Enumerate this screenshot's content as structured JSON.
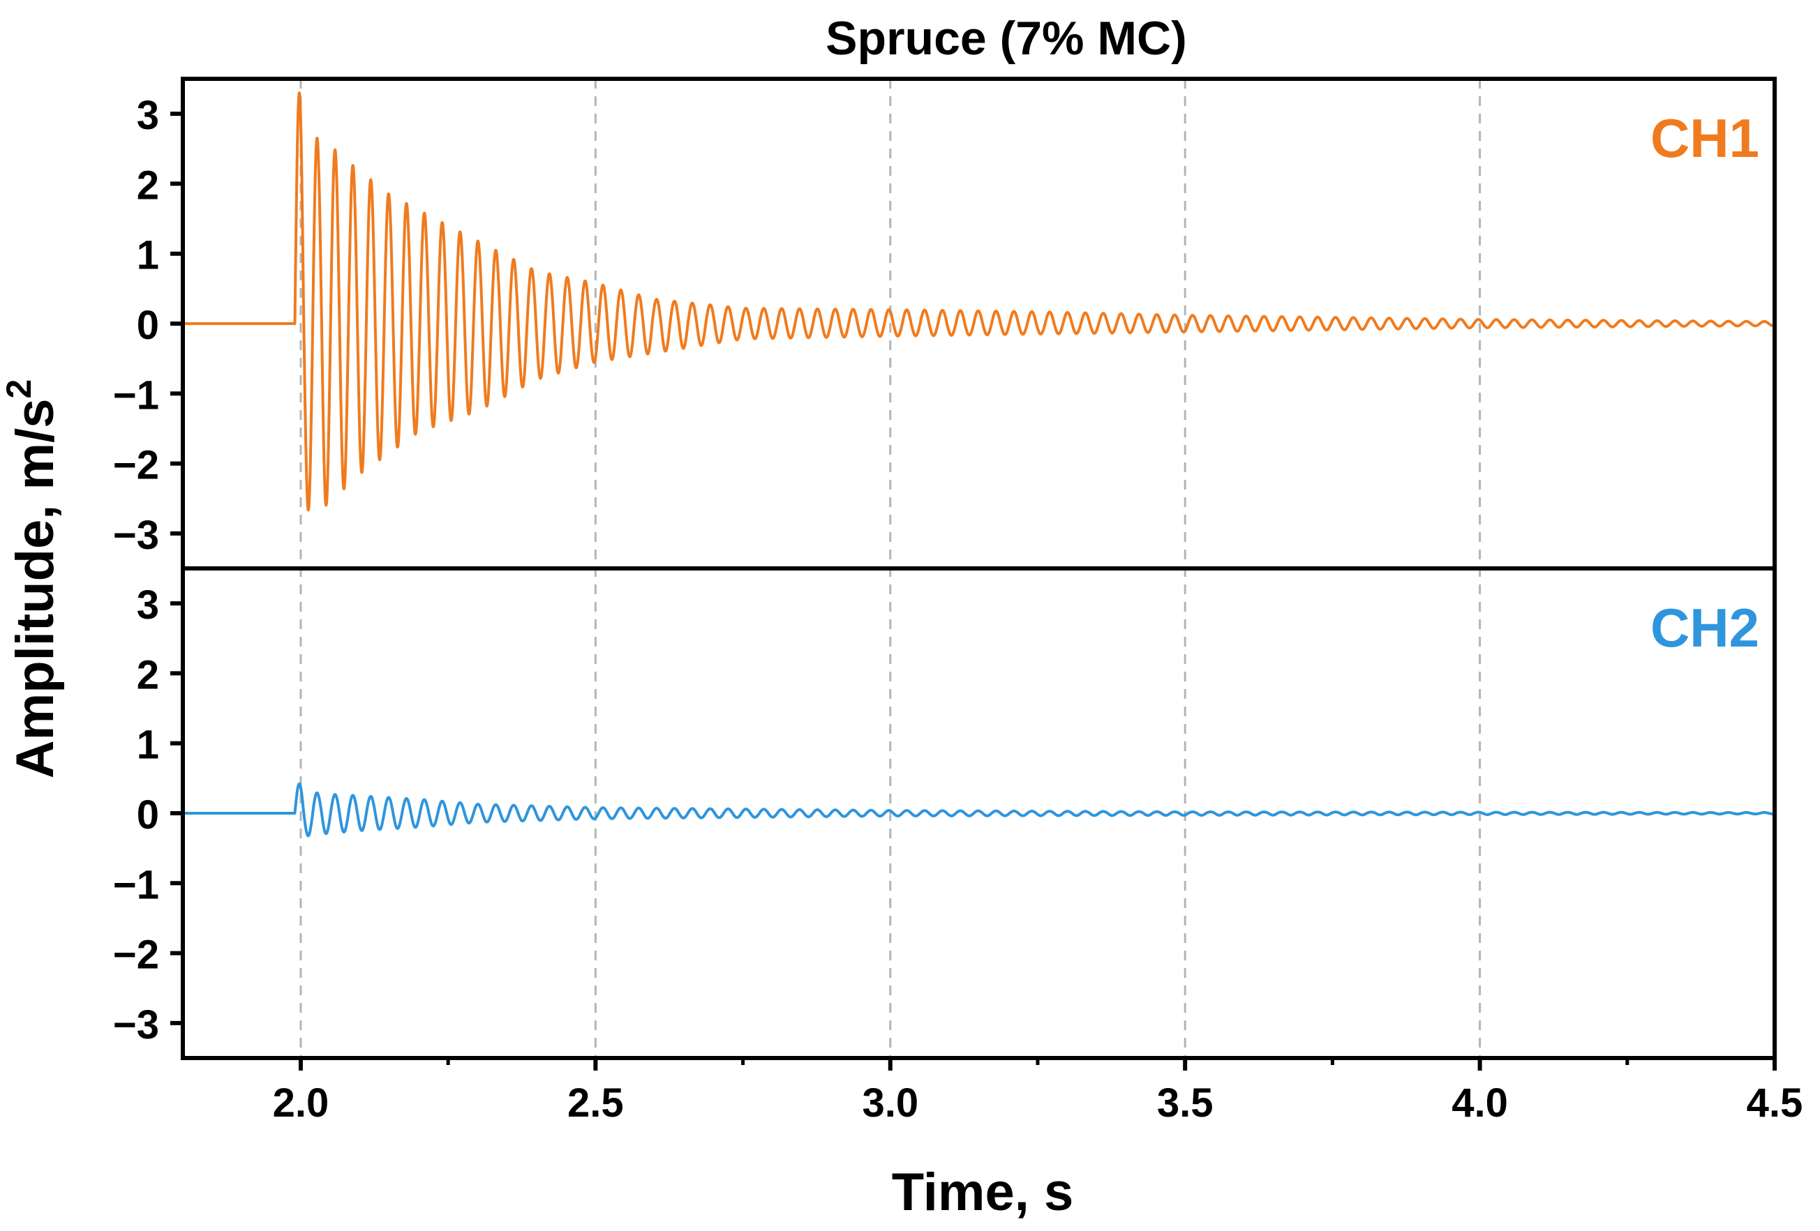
{
  "chart_data": {
    "type": "line",
    "title": "Spruce (7% MC)",
    "xlabel": "Time, s",
    "ylabel": "Amplitude, m/s",
    "ylabel_superscript": "2",
    "xlim": [
      1.8,
      4.5
    ],
    "ylim": [
      -3.5,
      3.5
    ],
    "x_ticks": [
      2.0,
      2.5,
      3.0,
      3.5,
      4.0,
      4.5
    ],
    "x_tick_labels": [
      "2.0",
      "2.5",
      "3.0",
      "3.5",
      "4.0",
      "4.5"
    ],
    "y_ticks": [
      3,
      2,
      1,
      0,
      -1,
      -2,
      -3
    ],
    "y_tick_labels": [
      "3",
      "2",
      "1",
      "0",
      "−1",
      "−2",
      "−3"
    ],
    "grid": "dashed vertical lines at major x ticks 2.0, 2.5, 3.0, 3.5, 4.0",
    "legend": "none",
    "panels": [
      {
        "name": "CH1",
        "label": "CH1",
        "color": "#f07b1e",
        "label_position": "top-right",
        "onset_time": 1.99,
        "baseline": 0,
        "oscillation_frequency_hz": 33,
        "peak_values": [
          {
            "x": 2.0,
            "y": 3.3
          },
          {
            "x": 2.03,
            "y": 2.6
          },
          {
            "x": 2.06,
            "y": 2.48
          },
          {
            "x": 2.09,
            "y": 2.25
          },
          {
            "x": 2.15,
            "y": 1.85
          },
          {
            "x": 2.25,
            "y": 1.4
          },
          {
            "x": 2.4,
            "y": 0.75
          },
          {
            "x": 2.5,
            "y": 0.58
          },
          {
            "x": 2.6,
            "y": 0.35
          },
          {
            "x": 2.75,
            "y": 0.22
          },
          {
            "x": 3.0,
            "y": 0.2
          },
          {
            "x": 3.25,
            "y": 0.17
          },
          {
            "x": 3.5,
            "y": 0.12
          },
          {
            "x": 4.0,
            "y": 0.06
          },
          {
            "x": 4.5,
            "y": 0.03
          }
        ],
        "trough_values": [
          {
            "x": 1.99,
            "y": -2.4
          },
          {
            "x": 2.02,
            "y": -2.75
          },
          {
            "x": 2.05,
            "y": -2.55
          },
          {
            "x": 2.1,
            "y": -2.15
          },
          {
            "x": 2.2,
            "y": -1.55
          },
          {
            "x": 2.3,
            "y": -1.25
          },
          {
            "x": 2.4,
            "y": -0.8
          },
          {
            "x": 2.5,
            "y": -0.55
          },
          {
            "x": 2.75,
            "y": -0.22
          },
          {
            "x": 3.0,
            "y": -0.18
          },
          {
            "x": 3.5,
            "y": -0.12
          },
          {
            "x": 4.0,
            "y": -0.06
          },
          {
            "x": 4.5,
            "y": -0.03
          }
        ]
      },
      {
        "name": "CH2",
        "label": "CH2",
        "color": "#2f95dc",
        "label_position": "top-right",
        "onset_time": 1.99,
        "baseline": 0,
        "oscillation_frequency_hz": 33,
        "peak_values": [
          {
            "x": 2.0,
            "y": 0.42
          },
          {
            "x": 2.03,
            "y": 0.28
          },
          {
            "x": 2.1,
            "y": 0.25
          },
          {
            "x": 2.2,
            "y": 0.2
          },
          {
            "x": 2.3,
            "y": 0.13
          },
          {
            "x": 2.5,
            "y": 0.08
          },
          {
            "x": 3.0,
            "y": 0.04
          },
          {
            "x": 3.5,
            "y": 0.02
          },
          {
            "x": 4.5,
            "y": 0.01
          }
        ],
        "trough_values": [
          {
            "x": 1.99,
            "y": -0.35
          },
          {
            "x": 2.03,
            "y": -0.3
          },
          {
            "x": 2.1,
            "y": -0.25
          },
          {
            "x": 2.2,
            "y": -0.2
          },
          {
            "x": 2.3,
            "y": -0.13
          },
          {
            "x": 2.5,
            "y": -0.08
          },
          {
            "x": 3.0,
            "y": -0.04
          },
          {
            "x": 4.5,
            "y": -0.01
          }
        ]
      }
    ]
  }
}
